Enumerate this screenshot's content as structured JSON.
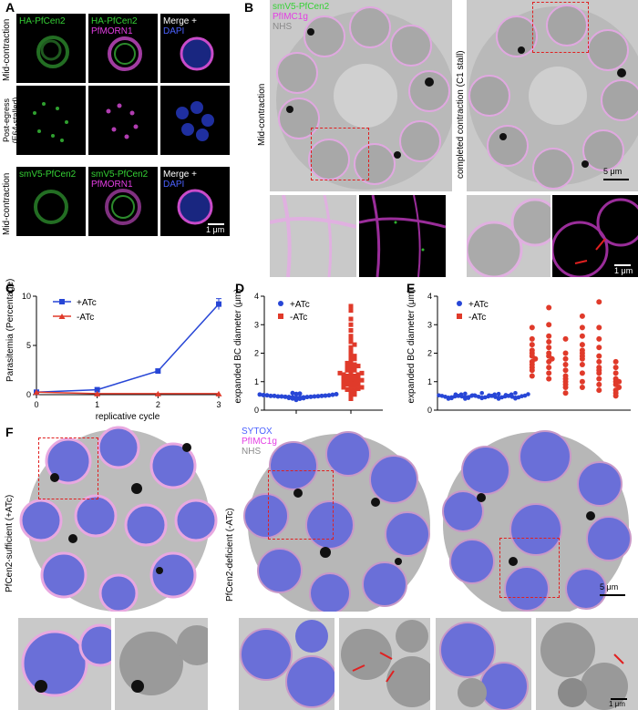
{
  "panels": {
    "A": {
      "label": "A",
      "rows": [
        {
          "side": "Mid-contraction",
          "chan1": "HA-PfCen2",
          "chan2a": "HA-PfCen2",
          "chan2b": "PfMORN1",
          "chan3a": "Merge +",
          "chan3b": "DAPI"
        },
        {
          "side": "Post-egress\n(E64-stalled)"
        },
        {
          "side": "Mid-contraction",
          "chan1": "smV5-PfCen2",
          "chan2a": "smV5-PfCen2",
          "chan2b": "PfMORN1",
          "chan3a": "Merge +",
          "chan3b": "DAPI"
        }
      ],
      "scalebar": "1 μm"
    },
    "B": {
      "label": "B",
      "legend": [
        "smV5-PfCen2",
        "PfIMC1g",
        "NHS"
      ],
      "left_side": "Mid-contraction",
      "right_side": "completed contraction (C1 stall)",
      "scalebar_main": "5 μm",
      "scalebar_inset": "1 μm"
    },
    "C": {
      "label": "C"
    },
    "D": {
      "label": "D"
    },
    "E": {
      "label": "E"
    },
    "F": {
      "label": "F",
      "left_side": "PfCen2-sufficient (+ATc)",
      "right_side": "PfCen2-deficient (-ATc)",
      "legend": [
        "SYTOX",
        "PfIMC1g",
        "NHS"
      ],
      "scalebar_main": "5 μm",
      "scalebar_inset": "1 μm"
    }
  },
  "chart_data": [
    {
      "id": "C",
      "type": "line",
      "xlabel": "replicative cycle",
      "ylabel": "Parasitemia (Percentage)",
      "x": [
        0,
        1,
        2,
        3
      ],
      "xlim": [
        0,
        3
      ],
      "ylim": [
        0,
        10
      ],
      "xticks": [
        "0",
        "1",
        "2",
        "3"
      ],
      "yticks": [
        "0",
        "5",
        "10"
      ],
      "series": [
        {
          "name": "+ATc",
          "values": [
            0.25,
            0.5,
            2.4,
            9.2
          ],
          "color": "#2746d6"
        },
        {
          "name": "-ATc",
          "values": [
            0.25,
            0.1,
            0.1,
            0.1
          ],
          "color": "#e03a2a"
        }
      ],
      "legend": "top-left"
    },
    {
      "id": "D",
      "type": "scatter",
      "ylabel": "expanded BC diameter (μm)",
      "ylim": [
        0,
        4
      ],
      "yticks": [
        "0",
        "1",
        "2",
        "3",
        "4"
      ],
      "series": [
        {
          "name": "+ATc",
          "color": "#2746d6",
          "values": [
            0.36,
            0.4,
            0.42,
            0.44,
            0.45,
            0.46,
            0.47,
            0.48,
            0.48,
            0.5,
            0.5,
            0.52,
            0.53,
            0.55,
            0.56,
            0.58,
            0.6,
            0.44,
            0.46,
            0.48,
            0.51,
            0.43,
            0.49,
            0.54,
            0.47,
            0.41,
            0.5,
            0.57,
            0.45,
            0.52
          ]
        },
        {
          "name": "-ATc",
          "color": "#e03a2a",
          "values": [
            0.4,
            0.5,
            0.55,
            0.6,
            0.65,
            0.7,
            0.72,
            0.75,
            0.8,
            0.8,
            0.85,
            0.9,
            0.9,
            0.95,
            1.0,
            1.0,
            1.0,
            1.05,
            1.1,
            1.1,
            1.15,
            1.2,
            1.2,
            1.25,
            1.3,
            1.3,
            1.35,
            1.4,
            1.45,
            1.5,
            1.5,
            1.55,
            1.6,
            1.65,
            1.7,
            1.8,
            1.85,
            1.9,
            2.0,
            2.1,
            2.2,
            2.3,
            2.4,
            2.5,
            2.6,
            2.8,
            3.0,
            3.2,
            3.5,
            3.65,
            0.9,
            1.0,
            1.1,
            1.2,
            0.7,
            0.85,
            1.15,
            1.25,
            1.4,
            1.6
          ]
        }
      ],
      "legend": "top-left"
    },
    {
      "id": "E",
      "type": "scatter",
      "ylabel": "expanded BC diameter (μm)",
      "ylim": [
        0,
        4
      ],
      "yticks": [
        "0",
        "1",
        "2",
        "3",
        "4"
      ],
      "series": [
        {
          "name": "+ATc",
          "color": "#2746d6",
          "groups": [
            [
              0.4,
              0.42,
              0.45,
              0.47,
              0.5,
              0.52,
              0.55,
              0.48,
              0.44,
              0.5
            ],
            [
              0.4,
              0.43,
              0.46,
              0.5,
              0.52,
              0.55,
              0.58,
              0.48,
              0.45,
              0.5
            ],
            [
              0.42,
              0.45,
              0.47,
              0.5,
              0.52,
              0.55,
              0.6,
              0.48,
              0.44,
              0.5
            ],
            [
              0.4,
              0.44,
              0.46,
              0.5,
              0.52,
              0.55,
              0.57,
              0.48,
              0.45,
              0.5
            ],
            [
              0.41,
              0.44,
              0.47,
              0.5,
              0.53,
              0.56,
              0.6,
              0.49,
              0.45,
              0.51
            ]
          ]
        },
        {
          "name": "-ATc",
          "color": "#e03a2a",
          "groups": [
            [
              1.2,
              1.4,
              1.6,
              1.7,
              1.8,
              1.9,
              2.0,
              2.1,
              2.3,
              2.5,
              2.9,
              1.5
            ],
            [
              1.1,
              1.3,
              1.5,
              1.7,
              1.8,
              2.0,
              2.2,
              2.4,
              2.6,
              3.0,
              3.6,
              1.9
            ],
            [
              0.6,
              0.8,
              0.9,
              1.0,
              1.1,
              1.2,
              1.4,
              1.6,
              1.8,
              2.0,
              2.5
            ],
            [
              0.8,
              1.0,
              1.3,
              1.6,
              1.8,
              2.0,
              2.1,
              2.3,
              2.6,
              2.9,
              3.3,
              1.9
            ],
            [
              0.7,
              0.9,
              1.1,
              1.3,
              1.5,
              1.7,
              1.9,
              2.2,
              2.5,
              2.9,
              3.8,
              1.4
            ],
            [
              0.5,
              0.6,
              0.7,
              0.8,
              0.9,
              1.0,
              1.1,
              1.3,
              1.5,
              1.7,
              1.0
            ]
          ]
        }
      ],
      "legend": "top-left"
    }
  ]
}
